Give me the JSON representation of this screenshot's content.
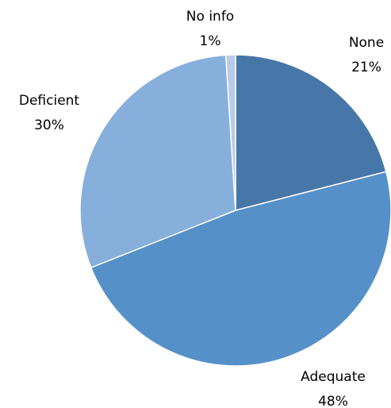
{
  "chart_data": {
    "type": "pie",
    "title": "",
    "categories": [
      "None",
      "Adequate",
      "Deficient",
      "No info"
    ],
    "values": [
      21,
      48,
      30,
      1
    ],
    "value_labels": [
      "21%",
      "48%",
      "30%",
      "1%"
    ],
    "colors": [
      "#4677a8",
      "#5590c8",
      "#86afdc",
      "#b9cde8"
    ],
    "start": "12 o'clock",
    "direction": "clockwise",
    "legend": "none",
    "label_placement": "outside"
  }
}
